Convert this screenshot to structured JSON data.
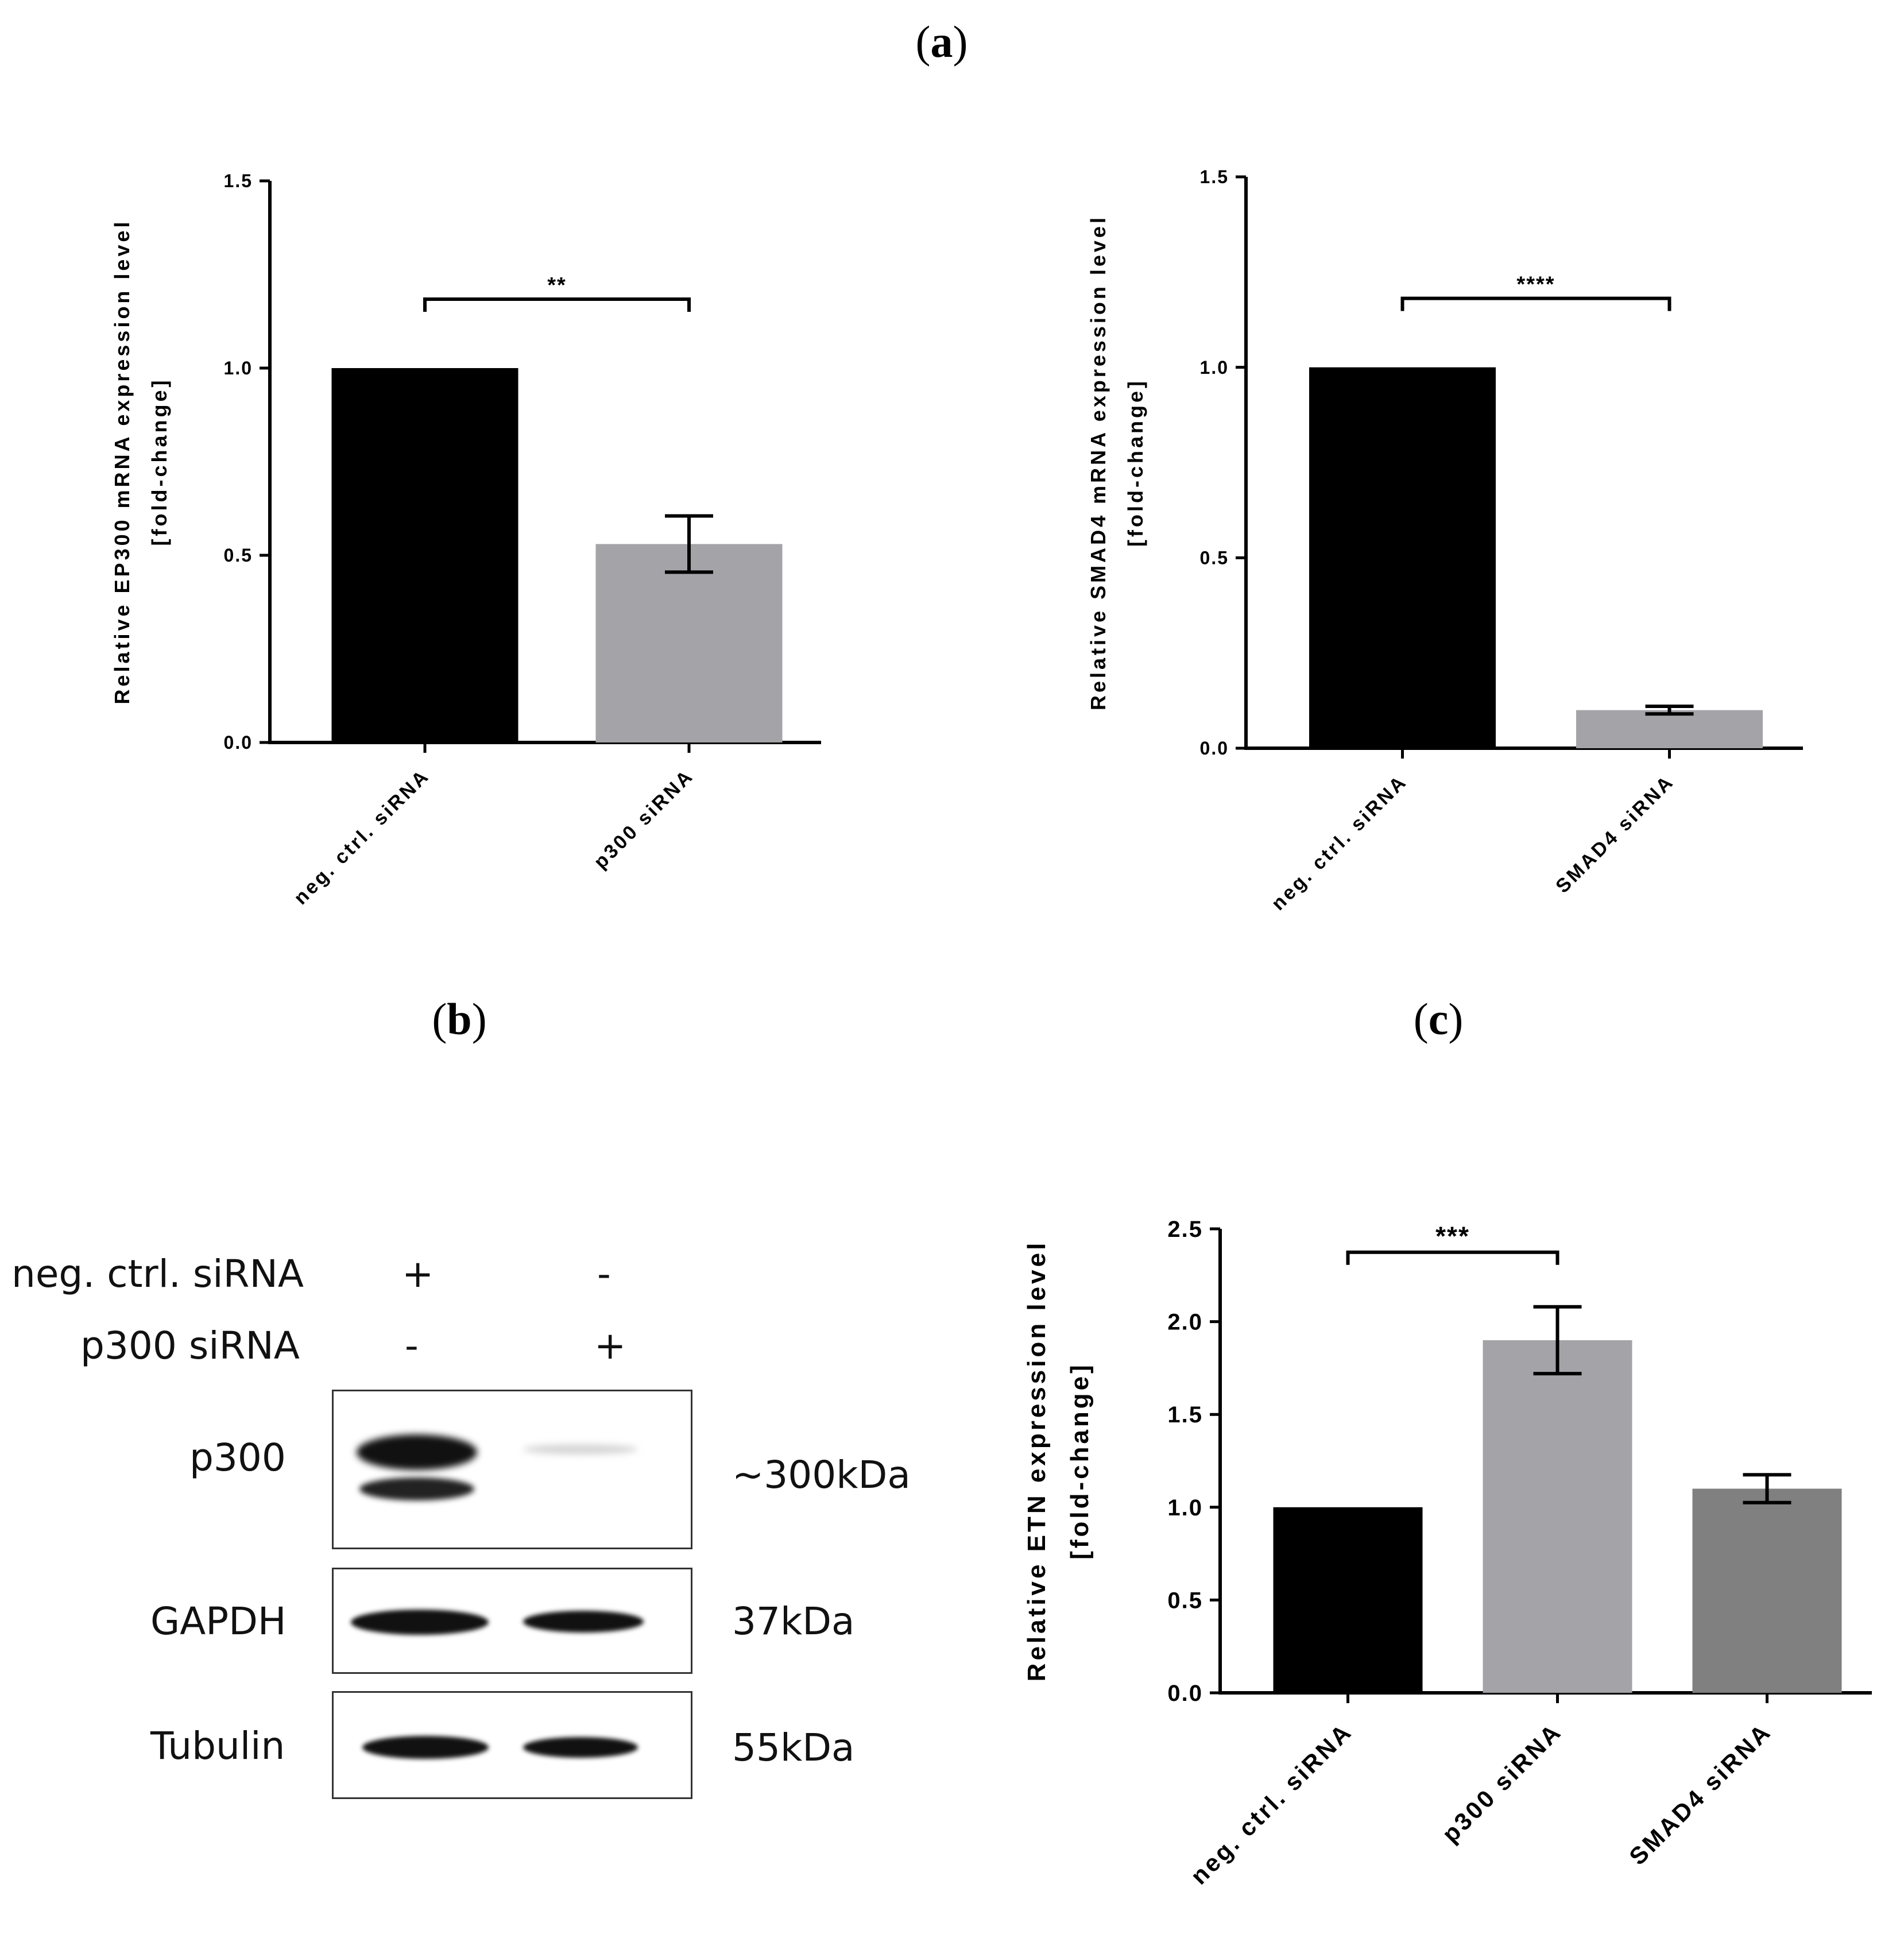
{
  "panels": {
    "a": "a",
    "b": "b",
    "c": "c"
  },
  "chart_data": [
    {
      "id": "a-left",
      "type": "bar",
      "categories": [
        "neg. ctrl. siRNA",
        "p300 siRNA"
      ],
      "values": [
        1.0,
        0.53
      ],
      "errors": [
        0,
        0.075
      ],
      "colors": [
        "#000000",
        "#a3a3a8"
      ],
      "ylabel": [
        "Relative EP300 mRNA expression level",
        "[fold-change]"
      ],
      "ylim": [
        0,
        1.5
      ],
      "yticks": [
        "0.0",
        "0.5",
        "1.0",
        "1.5"
      ],
      "significance": [
        {
          "from": 0,
          "to": 1,
          "label": "**"
        }
      ]
    },
    {
      "id": "a-right",
      "type": "bar",
      "categories": [
        "neg. ctrl. siRNA",
        "SMAD4 siRNA"
      ],
      "values": [
        1.0,
        0.1
      ],
      "errors": [
        0,
        0.01
      ],
      "colors": [
        "#000000",
        "#a3a3a8"
      ],
      "ylabel": [
        "Relative SMAD4 mRNA expression level",
        "[fold-change]"
      ],
      "ylim": [
        0,
        1.5
      ],
      "yticks": [
        "0.0",
        "0.5",
        "1.0",
        "1.5"
      ],
      "significance": [
        {
          "from": 0,
          "to": 1,
          "label": "****"
        }
      ]
    },
    {
      "id": "c",
      "type": "bar",
      "categories": [
        "neg. ctrl. siRNA",
        "p300 siRNA",
        "SMAD4 siRNA"
      ],
      "values": [
        1.0,
        1.9,
        1.1
      ],
      "errors": [
        0,
        0.18,
        0.075
      ],
      "colors": [
        "#000000",
        "#a3a3a8",
        "#808080"
      ],
      "ylabel": [
        "Relative ETN expression level",
        "[fold-change]"
      ],
      "ylim": [
        0,
        2.5
      ],
      "yticks": [
        "0.0",
        "0.5",
        "1.0",
        "1.5",
        "2.0",
        "2.5"
      ],
      "significance": [
        {
          "from": 0,
          "to": 1,
          "label": "***"
        }
      ]
    }
  ],
  "western_blot": {
    "conditions": [
      {
        "label": "neg. ctrl. siRNA",
        "marks": [
          "+",
          "-"
        ]
      },
      {
        "label": "p300 siRNA",
        "marks": [
          "-",
          "+"
        ]
      }
    ],
    "rows": [
      {
        "protein": "p300",
        "size": "~300kDa"
      },
      {
        "protein": "GAPDH",
        "size": "37kDa"
      },
      {
        "protein": "Tubulin",
        "size": "55kDa"
      }
    ]
  }
}
